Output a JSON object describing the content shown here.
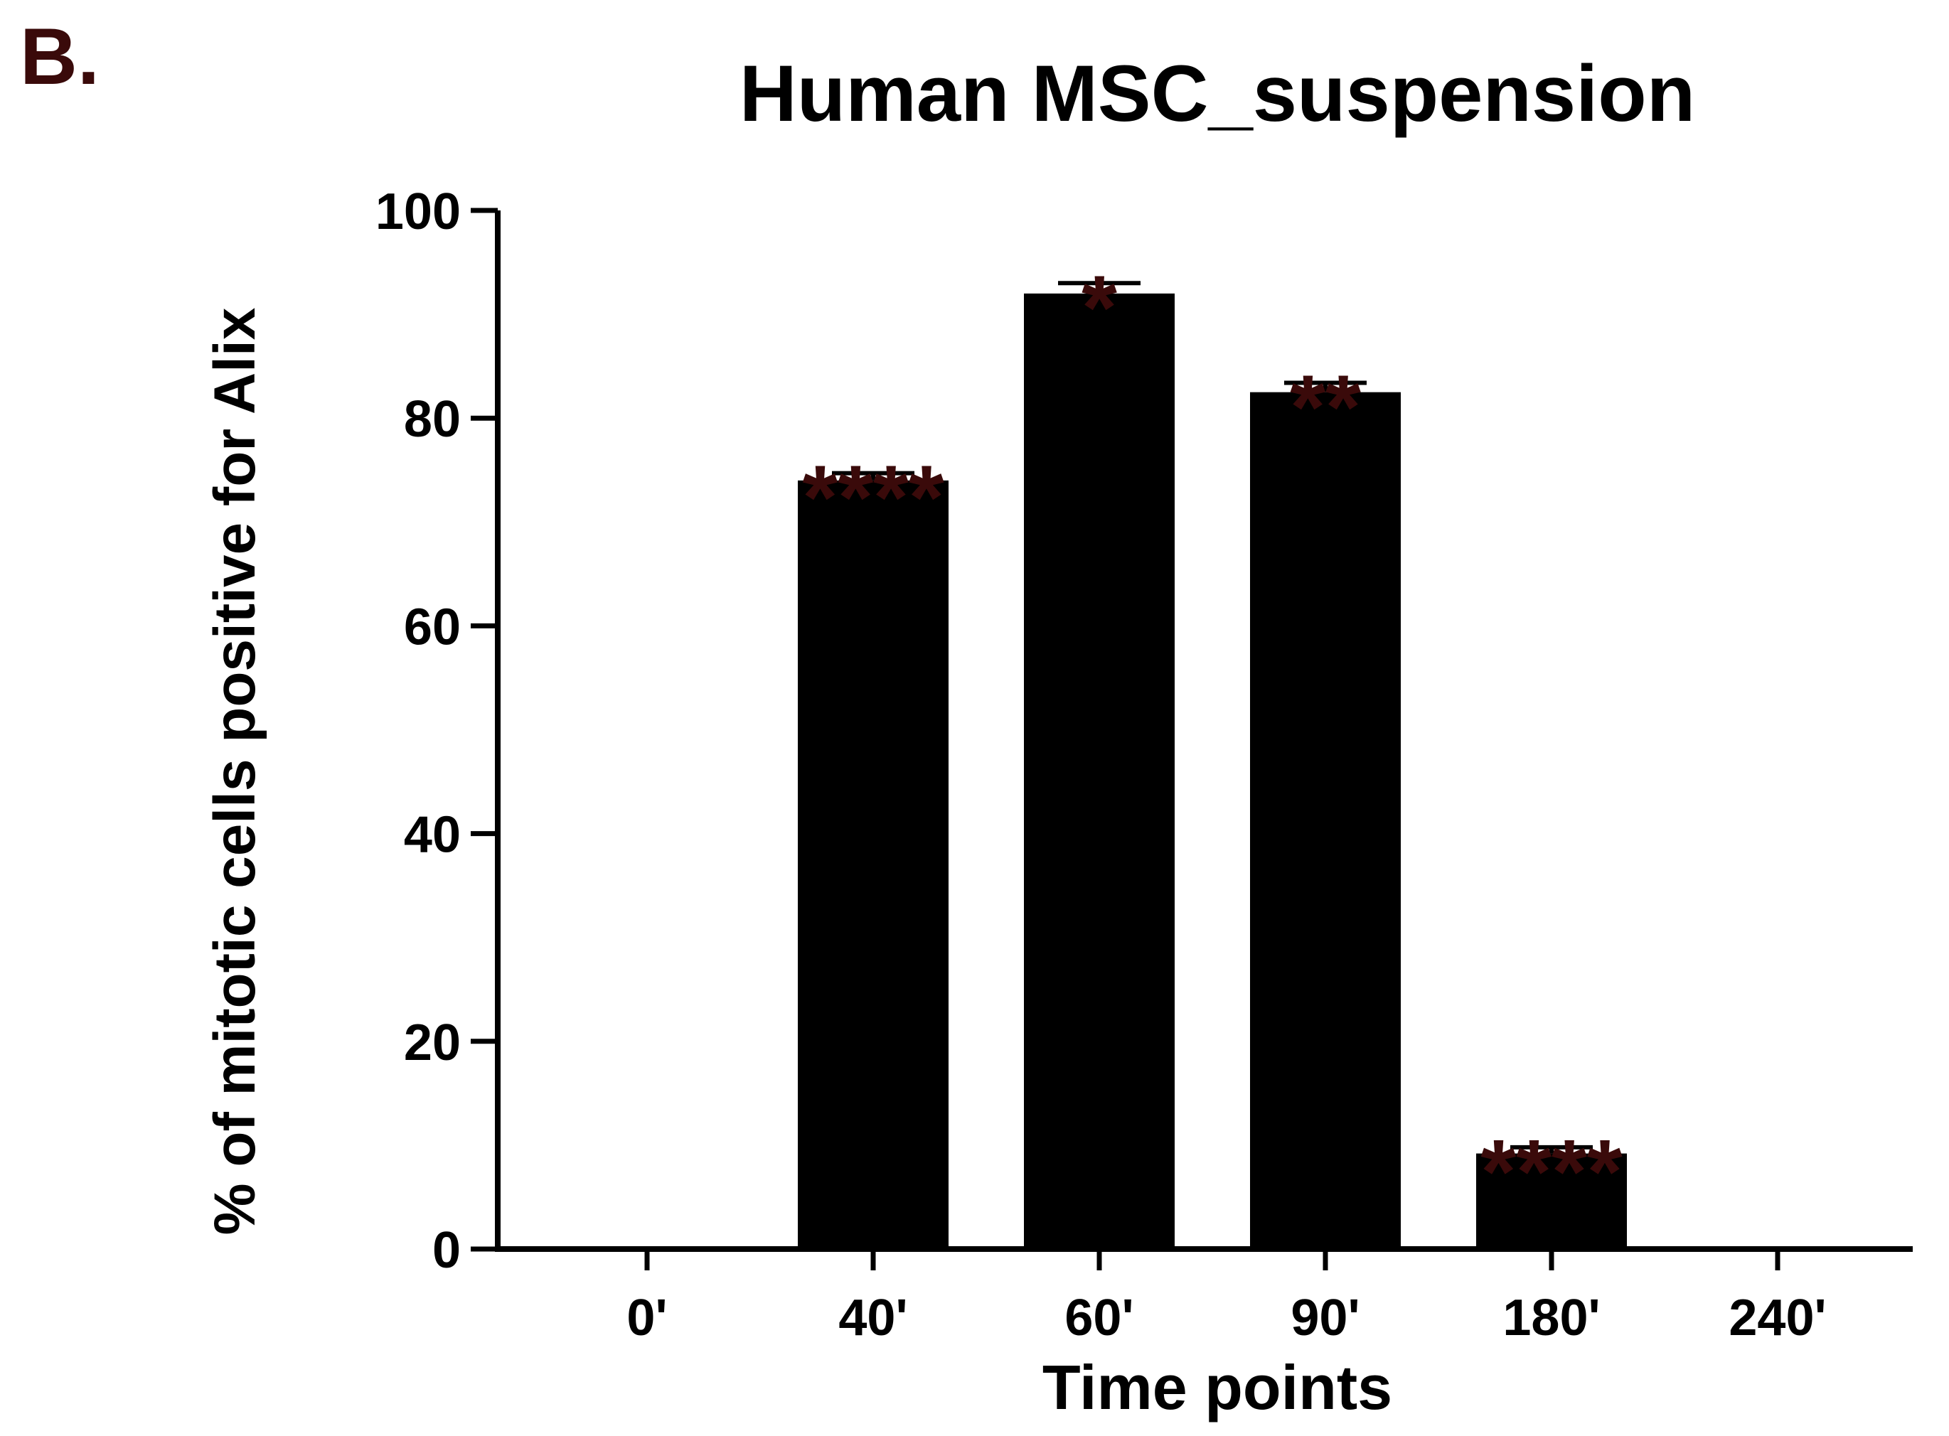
{
  "panel_label": "B.",
  "colors": {
    "bar": "#000000",
    "axis": "#000000",
    "text": "#000000",
    "panel_label": "#3a0a0a",
    "significance": "#3a0a0a"
  },
  "chart_data": {
    "type": "bar",
    "title": "Human MSC_suspension",
    "xlabel": "Time points",
    "ylabel": "% of mitotic cells positive for Alix",
    "categories": [
      "0'",
      "40'",
      "60'",
      "90'",
      "180'",
      "240'"
    ],
    "values": [
      0,
      74,
      92,
      82.5,
      9.2,
      0
    ],
    "error_upper": [
      0,
      0.7,
      1.0,
      0.9,
      0.6,
      0
    ],
    "significance": [
      "",
      "****",
      "*",
      "**",
      "****",
      ""
    ],
    "ylim": [
      0,
      100
    ],
    "yticks": [
      0,
      20,
      40,
      60,
      80,
      100
    ],
    "grid": false,
    "legend": "none"
  }
}
